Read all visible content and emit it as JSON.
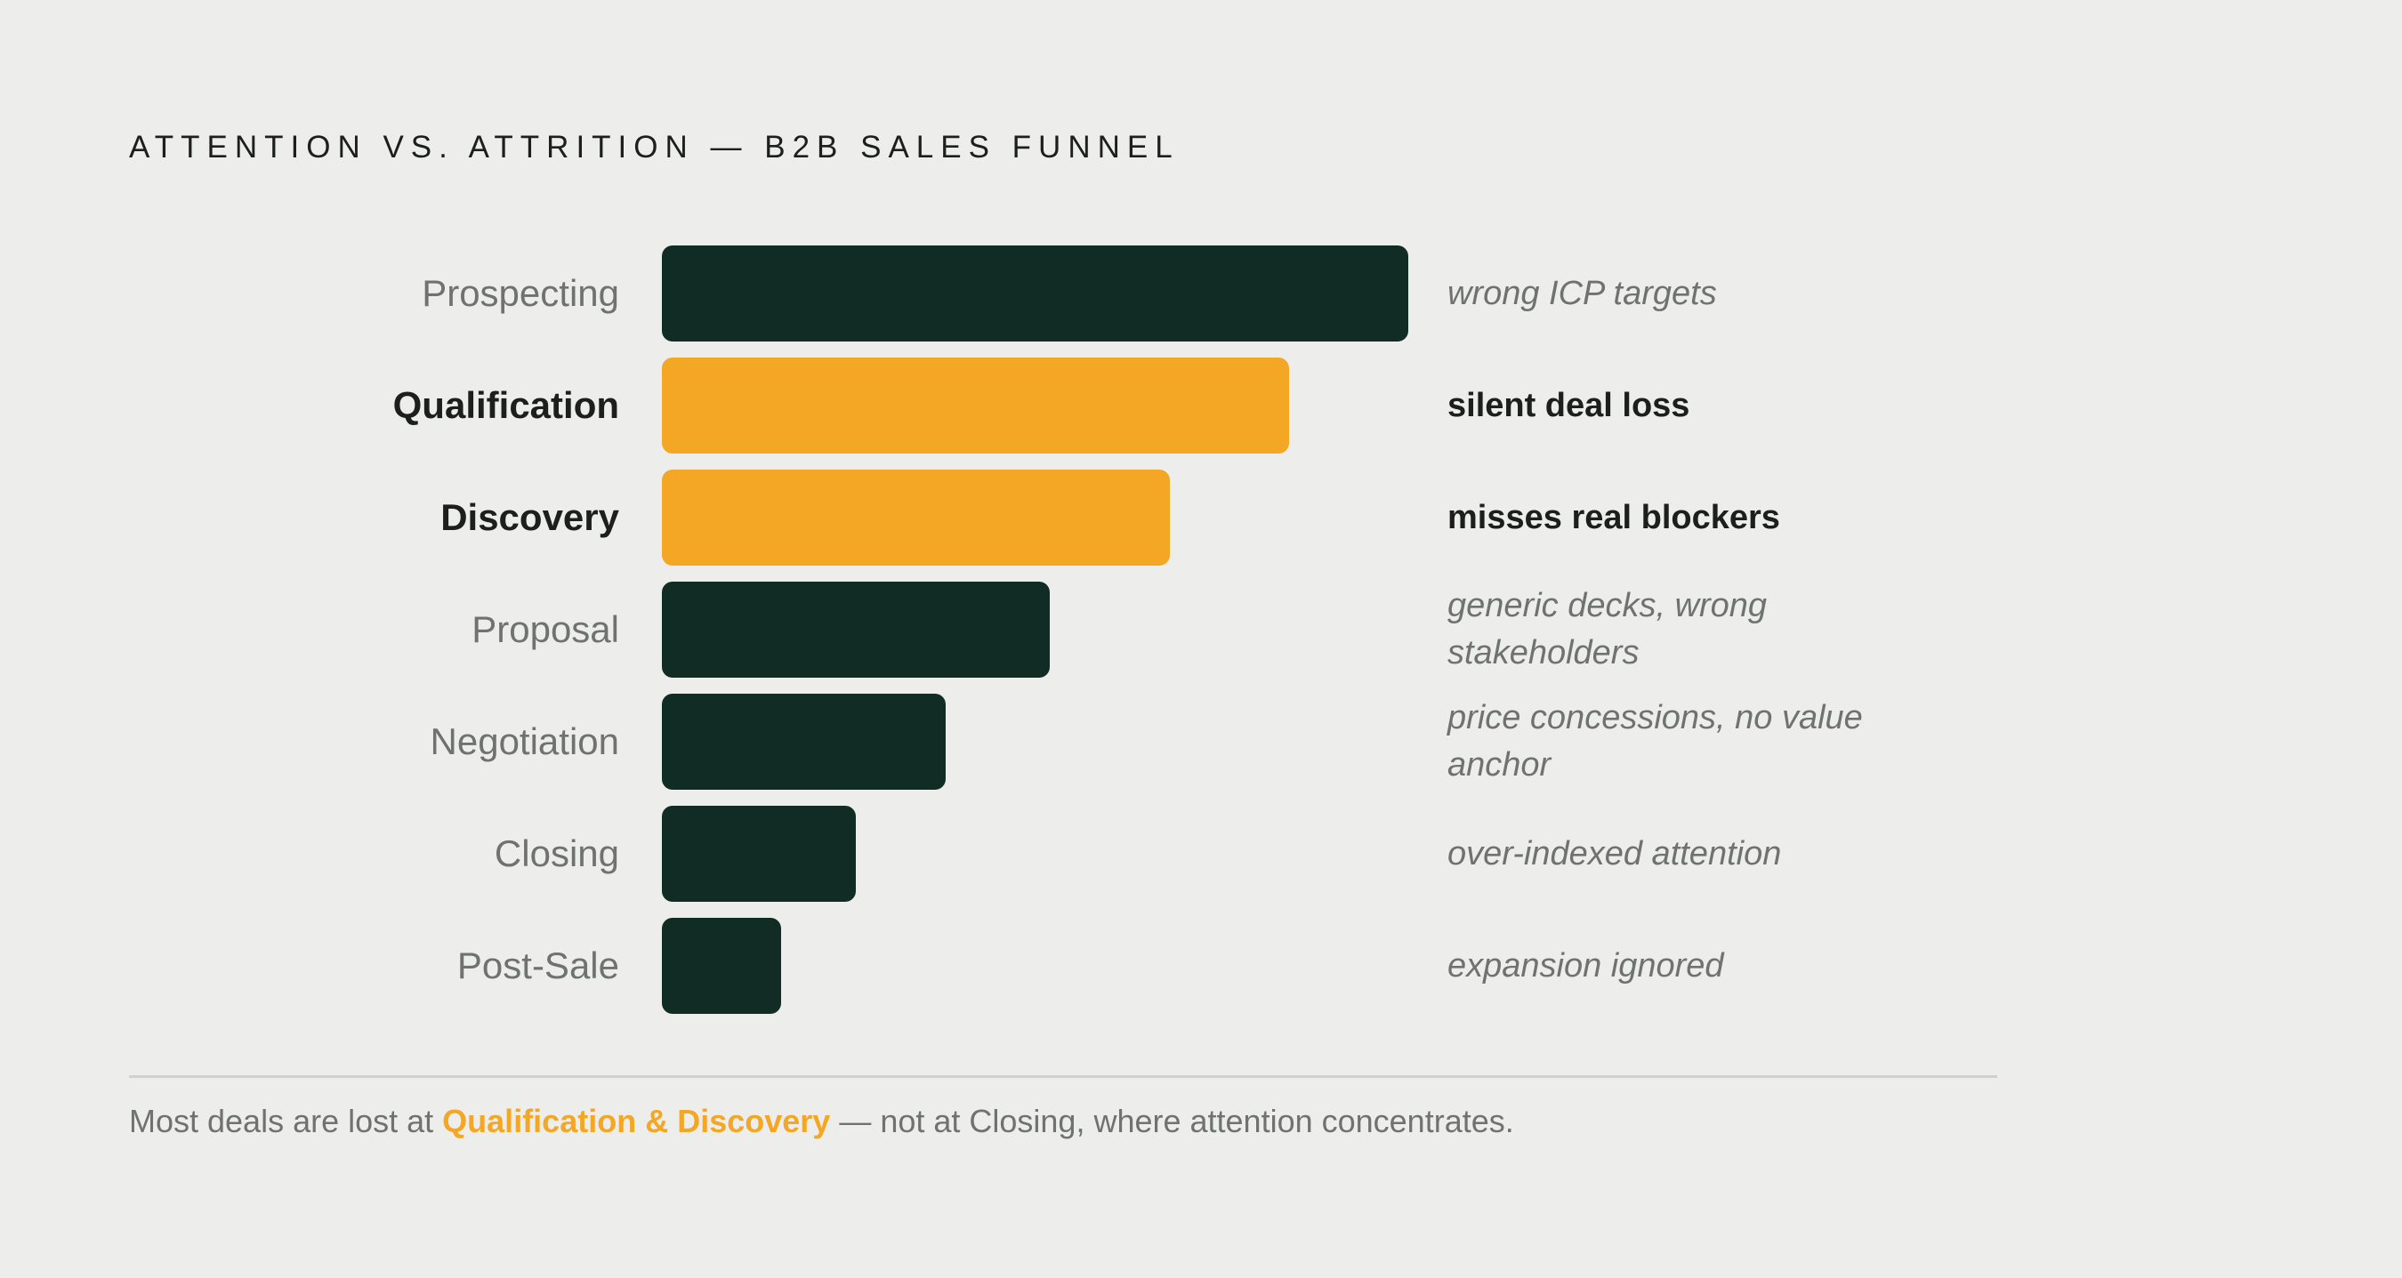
{
  "chart_data": {
    "type": "bar",
    "orientation": "horizontal",
    "title": "ATTENTION VS. ATTRITION — B2B SALES FUNNEL",
    "categories": [
      "Prospecting",
      "Qualification",
      "Discovery",
      "Proposal",
      "Negotiation",
      "Closing",
      "Post-Sale"
    ],
    "values": [
      100,
      84,
      68,
      52,
      38,
      26,
      16
    ],
    "highlighted": [
      false,
      true,
      true,
      false,
      false,
      false,
      false
    ],
    "annotations": [
      "wrong ICP targets",
      "silent deal loss",
      "misses real blockers",
      "generic decks, wrong stakeholders",
      "price concessions, no value anchor",
      "over-indexed attention",
      "expansion ignored"
    ],
    "colors": {
      "default": "#112b25",
      "highlight": "#f4a625",
      "background": "#edeeeb"
    },
    "grid": false,
    "legend": "none"
  },
  "footnote": {
    "prefix": "Most deals are lost at ",
    "highlight": "Qualification & Discovery",
    "suffix": " — not at Closing, where attention concentrates."
  }
}
